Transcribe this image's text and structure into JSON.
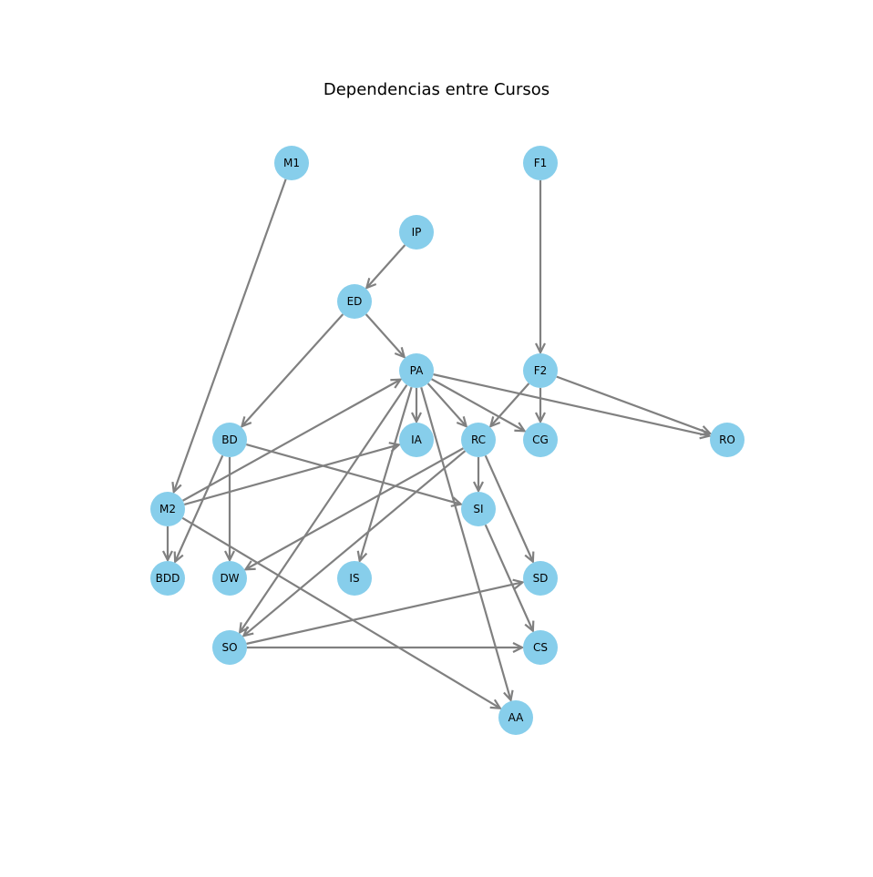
{
  "title": "Dependencias entre Cursos",
  "colors": {
    "node_fill": "#87ceeb",
    "edge": "#808080",
    "label": "#000000"
  },
  "nodes": [
    {
      "id": "M1",
      "label": "M1"
    },
    {
      "id": "F1",
      "label": "F1"
    },
    {
      "id": "IP",
      "label": "IP"
    },
    {
      "id": "ED",
      "label": "ED"
    },
    {
      "id": "PA",
      "label": "PA"
    },
    {
      "id": "F2",
      "label": "F2"
    },
    {
      "id": "BD",
      "label": "BD"
    },
    {
      "id": "IA",
      "label": "IA"
    },
    {
      "id": "RC",
      "label": "RC"
    },
    {
      "id": "CG",
      "label": "CG"
    },
    {
      "id": "RO",
      "label": "RO"
    },
    {
      "id": "M2",
      "label": "M2"
    },
    {
      "id": "SI",
      "label": "SI"
    },
    {
      "id": "BDD",
      "label": "BDD"
    },
    {
      "id": "DW",
      "label": "DW"
    },
    {
      "id": "IS",
      "label": "IS"
    },
    {
      "id": "SD",
      "label": "SD"
    },
    {
      "id": "SO",
      "label": "SO"
    },
    {
      "id": "CS",
      "label": "CS"
    },
    {
      "id": "AA",
      "label": "AA"
    }
  ],
  "edges": [
    {
      "from": "M1",
      "to": "M2"
    },
    {
      "from": "F1",
      "to": "F2"
    },
    {
      "from": "IP",
      "to": "ED"
    },
    {
      "from": "ED",
      "to": "PA"
    },
    {
      "from": "ED",
      "to": "BD"
    },
    {
      "from": "PA",
      "to": "IA"
    },
    {
      "from": "PA",
      "to": "RC"
    },
    {
      "from": "PA",
      "to": "CG"
    },
    {
      "from": "PA",
      "to": "RO"
    },
    {
      "from": "PA",
      "to": "IS"
    },
    {
      "from": "PA",
      "to": "SO"
    },
    {
      "from": "PA",
      "to": "AA"
    },
    {
      "from": "F2",
      "to": "CG"
    },
    {
      "from": "F2",
      "to": "RC"
    },
    {
      "from": "F2",
      "to": "RO"
    },
    {
      "from": "M2",
      "to": "PA"
    },
    {
      "from": "M2",
      "to": "IA"
    },
    {
      "from": "M2",
      "to": "BDD"
    },
    {
      "from": "M2",
      "to": "AA"
    },
    {
      "from": "BD",
      "to": "BDD"
    },
    {
      "from": "BD",
      "to": "DW"
    },
    {
      "from": "BD",
      "to": "SI"
    },
    {
      "from": "RC",
      "to": "SI"
    },
    {
      "from": "RC",
      "to": "SD"
    },
    {
      "from": "RC",
      "to": "DW"
    },
    {
      "from": "RC",
      "to": "SO"
    },
    {
      "from": "SI",
      "to": "CS"
    },
    {
      "from": "SO",
      "to": "SD"
    },
    {
      "from": "SO",
      "to": "CS"
    }
  ]
}
